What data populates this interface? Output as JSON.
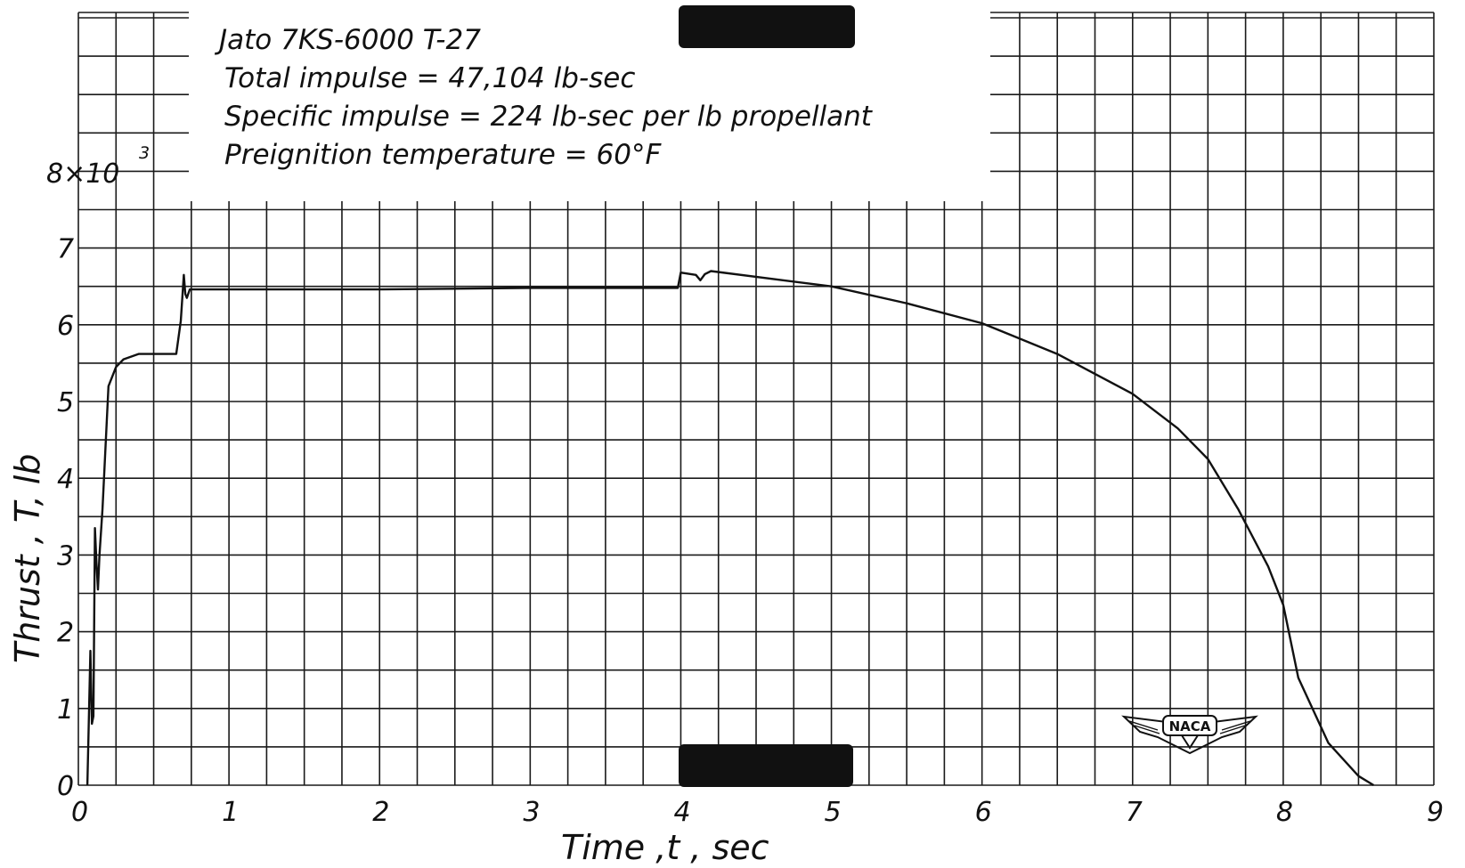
{
  "chart_data": {
    "type": "line",
    "title": "",
    "xlabel": "Time ,t , sec",
    "ylabel": "Thrust , T, lb",
    "y_multiplier_label": "8×10",
    "y_multiplier_exponent": "3",
    "xlim": [
      0,
      9
    ],
    "ylim": [
      0,
      8
    ],
    "grid": true,
    "x_tick_labels": [
      "0",
      "1",
      "2",
      "3",
      "4",
      "5",
      "6",
      "7",
      "8",
      "9"
    ],
    "y_tick_labels": [
      "0",
      "1",
      "2",
      "3",
      "4",
      "5",
      "6",
      "7"
    ],
    "annotations": [
      "Jato 7KS-6000 T-27",
      "Total impulse = 47,104 lb-sec",
      "Specific impulse = 224 lb-sec per lb propellant",
      "Preignition temperature = 60°F"
    ],
    "series": [
      {
        "x": [
          0.06,
          0.08,
          0.09,
          0.1,
          0.11,
          0.12,
          0.13,
          0.14,
          0.16,
          0.2,
          0.25,
          0.3,
          0.4,
          0.5,
          0.65,
          0.68,
          0.7,
          0.71,
          0.72,
          0.74,
          1.0,
          2.0,
          3.0,
          3.98,
          4.0,
          4.1,
          4.13,
          4.16,
          4.2,
          5.0,
          5.5,
          6.0,
          6.5,
          7.0,
          7.3,
          7.5,
          7.7,
          7.9,
          8.0,
          8.1,
          8.3,
          8.5,
          8.6
        ],
        "y": [
          0,
          1.75,
          0.8,
          0.9,
          3.35,
          2.9,
          2.55,
          3.0,
          3.6,
          5.2,
          5.45,
          5.55,
          5.62,
          5.62,
          5.62,
          6.05,
          6.65,
          6.4,
          6.35,
          6.46,
          6.46,
          6.46,
          6.48,
          6.48,
          6.68,
          6.65,
          6.58,
          6.66,
          6.7,
          6.5,
          6.28,
          6.02,
          5.62,
          5.1,
          4.65,
          4.25,
          3.6,
          2.85,
          2.35,
          1.4,
          0.55,
          0.12,
          0.0
        ]
      }
    ],
    "colors": {
      "line": "#111111",
      "grid": "#1a1a1a",
      "redaction": "#111111"
    },
    "logo_text": "NACA"
  }
}
